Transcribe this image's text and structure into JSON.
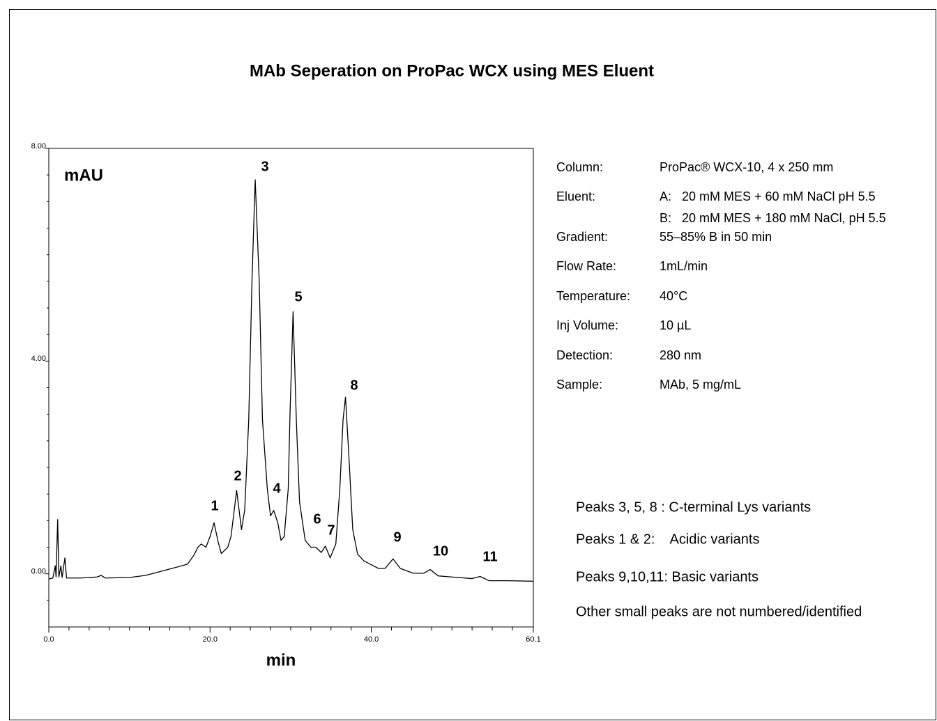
{
  "chart_data": {
    "type": "line",
    "title": "MAb Seperation on ProPac WCX using MES Eluent",
    "y_label": "mAU",
    "x_label": "min",
    "color": "#000000",
    "x": [
      0,
      0.5,
      0.8,
      0.9,
      1.1,
      1.25,
      1.5,
      1.65,
      2.0,
      2.2,
      4,
      6,
      6.5,
      7,
      10,
      12,
      14,
      16,
      17.2,
      18,
      18.5,
      18.9,
      19.5,
      20,
      20.5,
      21,
      21.4,
      22.2,
      22.6,
      23.3,
      23.9,
      24.3,
      24.8,
      25.2,
      25.6,
      26.1,
      26.5,
      27.1,
      27.5,
      27.9,
      28.4,
      28.8,
      29.2,
      29.7,
      29.9,
      30.3,
      30.7,
      31.1,
      31.8,
      32.5,
      33.1,
      33.8,
      34.3,
      34.9,
      35.6,
      36.1,
      36.5,
      36.8,
      37.2,
      37.7,
      38.3,
      39.1,
      40.9,
      41.7,
      42.7,
      43.6,
      45.2,
      46.5,
      47.3,
      48.3,
      50.8,
      52.5,
      53.5,
      54.6,
      57,
      60.1
    ],
    "values": [
      -0.1,
      -0.08,
      0.15,
      -0.06,
      1.02,
      -0.06,
      0.15,
      -0.07,
      0.3,
      -0.08,
      -0.08,
      -0.06,
      -0.03,
      -0.08,
      -0.07,
      -0.03,
      0.05,
      0.13,
      0.18,
      0.35,
      0.5,
      0.56,
      0.5,
      0.7,
      0.96,
      0.6,
      0.38,
      0.5,
      0.7,
      1.57,
      0.83,
      1.2,
      2.9,
      5.5,
      7.41,
      5.5,
      2.9,
      1.6,
      1.09,
      1.19,
      0.96,
      0.63,
      0.7,
      1.6,
      2.9,
      4.93,
      2.9,
      1.35,
      0.63,
      0.5,
      0.5,
      0.4,
      0.52,
      0.3,
      0.56,
      1.6,
      2.9,
      3.32,
      2.27,
      0.83,
      0.37,
      0.24,
      0.1,
      0.1,
      0.28,
      0.1,
      0.01,
      0.01,
      0.08,
      -0.04,
      -0.07,
      -0.09,
      -0.05,
      -0.13,
      -0.13,
      -0.14
    ],
    "xlim": [
      0,
      60.1
    ],
    "ylim": [
      -1,
      8
    ],
    "xticks": [
      {
        "value": 0,
        "label": "0.0"
      },
      {
        "value": 20,
        "label": "20.0"
      },
      {
        "value": 40,
        "label": "40.0"
      },
      {
        "value": 60.1,
        "label": "60.1"
      }
    ],
    "xminorticks": [
      2.5,
      5,
      7.5,
      10,
      12.5,
      15,
      17.5,
      22.5,
      25,
      27.5,
      30,
      32.5,
      35,
      37.5,
      42.5,
      45,
      47.5,
      50,
      52.5,
      55,
      57.5
    ],
    "yticks": [
      {
        "value": 0,
        "label": "0.00"
      },
      {
        "value": 4,
        "label": "4.00"
      },
      {
        "value": 8,
        "label": "8.00"
      }
    ],
    "yminorticks": [
      -0.5,
      0.5,
      1,
      1.5,
      2,
      2.5,
      3,
      3.5,
      4.5,
      5,
      5.5,
      6,
      6.5,
      7,
      7.5
    ],
    "peak_labels": [
      "1",
      "2",
      "3",
      "4",
      "5",
      "6",
      "7",
      "8",
      "9",
      "10",
      "11"
    ],
    "conditions": [
      {
        "label": "Column:",
        "value": [
          "ProPac® WCX-10, 4 x 250 mm"
        ]
      },
      {
        "label": "Eluent:",
        "value": [
          "A:   20 mM MES + 60 mM NaCl pH 5.5",
          "B:   20 mM MES + 180 mM NaCl, pH 5.5"
        ]
      },
      {
        "label": "Gradient:",
        "value": [
          "55–85% B in 50 min"
        ]
      },
      {
        "label": "Flow Rate:",
        "value": [
          "1mL/min"
        ]
      },
      {
        "label": "Temperature:",
        "value": [
          "40°C"
        ]
      },
      {
        "label": "Inj Volume:",
        "value": [
          "10 µL"
        ]
      },
      {
        "label": "Detection:",
        "value": [
          "280 nm"
        ]
      },
      {
        "label": "Sample:",
        "value": [
          "MAb, 5 mg/mL"
        ]
      }
    ],
    "notes": [
      "Peaks 3, 5, 8 : C-terminal Lys variants",
      "Peaks 1 & 2:    Acidic variants",
      "Peaks 9,10,11: Basic variants",
      "Other small peaks are not numbered/identified"
    ]
  }
}
